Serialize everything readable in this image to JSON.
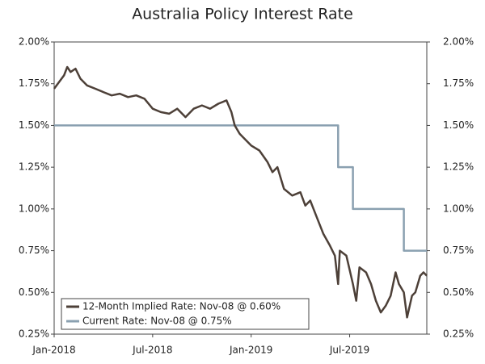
{
  "chart_data": {
    "type": "line",
    "title": "Australia Policy Interest Rate",
    "xlim": [
      0,
      22.7
    ],
    "xticks": [
      {
        "value": 0,
        "label": "Jan-2018"
      },
      {
        "value": 6,
        "label": "Jul-2018"
      },
      {
        "value": 12,
        "label": "Jan-2019"
      },
      {
        "value": 18,
        "label": "Jul-2019"
      }
    ],
    "ylim": [
      0.25,
      2.0
    ],
    "yticks": [
      {
        "value": 0.25,
        "label": "0.25%"
      },
      {
        "value": 0.5,
        "label": "0.50%"
      },
      {
        "value": 0.75,
        "label": "0.75%"
      },
      {
        "value": 1.0,
        "label": "1.00%"
      },
      {
        "value": 1.25,
        "label": "1.25%"
      },
      {
        "value": 1.5,
        "label": "1.50%"
      },
      {
        "value": 1.75,
        "label": "1.75%"
      },
      {
        "value": 2.0,
        "label": "2.00%"
      }
    ],
    "grid": false,
    "legend": "lower left",
    "series": [
      {
        "name": "12-Month Implied Rate: Nov-08 @ 0.60%",
        "color": "#4d4038",
        "x": [
          0,
          0.3,
          0.6,
          0.8,
          1.0,
          1.3,
          1.6,
          2.0,
          2.5,
          3.0,
          3.5,
          4.0,
          4.5,
          5.0,
          5.5,
          6.0,
          6.5,
          7.0,
          7.5,
          8.0,
          8.5,
          9.0,
          9.5,
          10.0,
          10.5,
          10.8,
          11.0,
          11.3,
          11.6,
          12.0,
          12.5,
          13.0,
          13.3,
          13.6,
          14.0,
          14.5,
          15.0,
          15.3,
          15.6,
          16.0,
          16.4,
          16.8,
          17.1,
          17.3,
          17.4,
          17.8,
          18.2,
          18.4,
          18.6,
          19.0,
          19.3,
          19.6,
          19.9,
          20.2,
          20.5,
          20.8,
          21.0,
          21.3,
          21.5,
          21.8,
          22.0,
          22.3,
          22.5,
          22.7
        ],
        "values": [
          1.72,
          1.76,
          1.8,
          1.85,
          1.82,
          1.84,
          1.78,
          1.74,
          1.72,
          1.7,
          1.68,
          1.69,
          1.67,
          1.68,
          1.66,
          1.6,
          1.58,
          1.57,
          1.6,
          1.55,
          1.6,
          1.62,
          1.6,
          1.63,
          1.65,
          1.58,
          1.5,
          1.45,
          1.42,
          1.38,
          1.35,
          1.28,
          1.22,
          1.25,
          1.12,
          1.08,
          1.1,
          1.02,
          1.05,
          0.95,
          0.85,
          0.78,
          0.72,
          0.55,
          0.75,
          0.72,
          0.55,
          0.45,
          0.65,
          0.62,
          0.55,
          0.45,
          0.38,
          0.42,
          0.48,
          0.62,
          0.55,
          0.5,
          0.35,
          0.48,
          0.5,
          0.6,
          0.62,
          0.6
        ]
      },
      {
        "name": "Current Rate: Nov-08 @ 0.75%",
        "color": "#8aa0b0",
        "x": [
          0,
          17.3,
          17.3,
          18.2,
          18.2,
          21.3,
          21.3,
          22.7
        ],
        "values": [
          1.5,
          1.5,
          1.25,
          1.25,
          1.0,
          1.0,
          0.75,
          0.75
        ]
      }
    ]
  }
}
